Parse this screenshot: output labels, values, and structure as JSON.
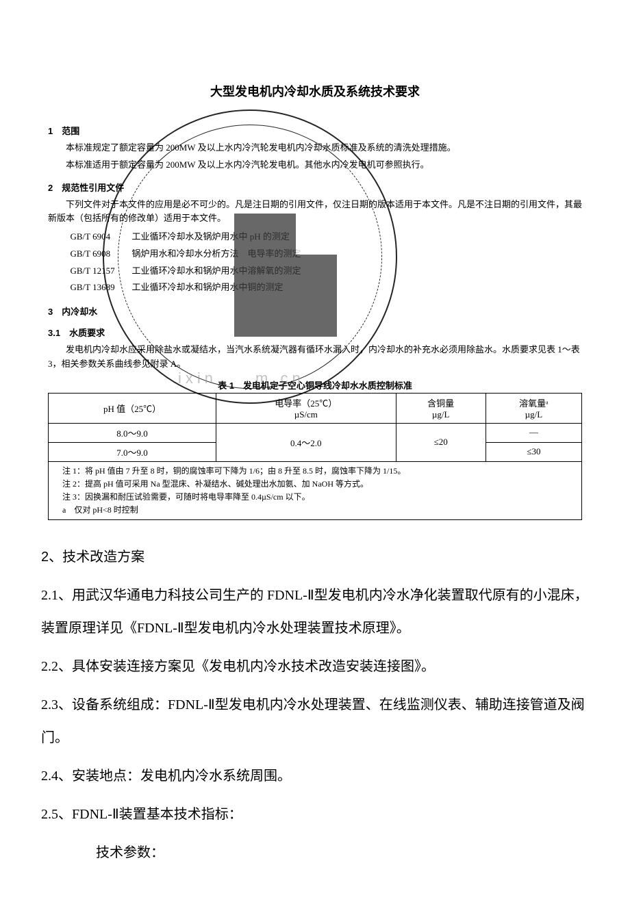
{
  "figure": {
    "title": "大型发电机内冷却水质及系统技术要求",
    "sections": {
      "s1": {
        "head": "1　范围",
        "p1": "本标准规定了额定容量为 200MW 及以上水内冷汽轮发电机内冷却水质标准及系统的清洗处理措施。",
        "p2": "本标准适用于额定容量为 200MW 及以上水内冷汽轮发电机。其他水内冷发电机可参照执行。"
      },
      "s2": {
        "head": "2　规范性引用文件",
        "p1": "下列文件对于本文件的应用是必不可少的。凡是注日期的引用文件，仅注日期的版本适用于本文件。凡是不注日期的引用文件，其最新版本（包括所有的修改单）适用于本文件。",
        "refs": [
          {
            "id": "GB/T 6904",
            "txt": "工业循环冷却水及锅炉用水中 pH 的测定"
          },
          {
            "id": "GB/T 6908",
            "txt": "锅炉用水和冷却水分析方法　电导率的测定"
          },
          {
            "id": "GB/T 12157",
            "txt": "工业循环冷却水和锅炉用水中溶解氧的测定"
          },
          {
            "id": "GB/T 13689",
            "txt": "工业循环冷却水和锅炉用水中铜的测定"
          }
        ]
      },
      "s3": {
        "head": "3　内冷却水",
        "sub": "3.1　水质要求",
        "p1": "发电机内冷却水应采用除盐水或凝结水，当汽水系统凝汽器有循环水漏入时，内冷却水的补充水必须用除盐水。水质要求见表 1～表 3，相关参数关系曲线参见附录 A。"
      }
    },
    "table": {
      "caption": "表 1　发电机定子空心铜导线冷却水水质控制标准",
      "headers": {
        "c1": "pH 值（25℃）",
        "c2_l1": "电导率（25℃）",
        "c2_l2": "µS/cm",
        "c3_l1": "含铜量",
        "c3_l2": "µg/L",
        "c4_l1": "溶氧量ᵃ",
        "c4_l2": "µg/L"
      },
      "rows": [
        {
          "ph": "8.0～9.0",
          "cond": "0.4～2.0",
          "cu": "≤20",
          "o2": "—"
        },
        {
          "ph": "7.0～9.0",
          "cond": "",
          "cu": "",
          "o2": "≤30"
        }
      ],
      "notes": {
        "n1": "注 1：将 pH 值由 7 升至 8 时，铜的腐蚀率可下降为 1/6；由 8 升至 8.5 时，腐蚀率下降为 1/15。",
        "n2": "注 2：提高 pH 值可采用 Na 型混床、补凝结水、碱处理出水加氨、加 NaOH 等方式。",
        "n3": "注 3：因换漏和耐压试验需要，可随时将电导率降至 0.4µS/cm 以下。",
        "na": "a　仅对 pH<8 时控制"
      }
    },
    "stamp_text": "CHINA ELECTRIC POWER PRESS",
    "watermark": "ixin　　m.cn"
  },
  "body": {
    "h2": "2、技术改造方案",
    "p21": "2.1、用武汉华通电力科技公司生产的 FDNL-Ⅱ型发电机内冷水净化装置取代原有的小混床，装置原理详见《FDNL-Ⅱ型发电机内冷水处理装置技术原理》。",
    "p22": "2.2、具体安装连接方案见《发电机内冷水技术改造安装连接图》。",
    "p23": "2.3、设备系统组成：FDNL-Ⅱ型发电机内冷水处理装置、在线监测仪表、辅助连接管道及阀门。",
    "p24": "2.4、安装地点：发电机内冷水系统周围。",
    "p25": "2.5、FDNL-Ⅱ装置基本技术指标：",
    "p26": "技术参数："
  },
  "colors": {
    "text": "#000000",
    "background": "#ffffff",
    "stamp_block": "#3a3a3a",
    "watermark": "#888888"
  }
}
